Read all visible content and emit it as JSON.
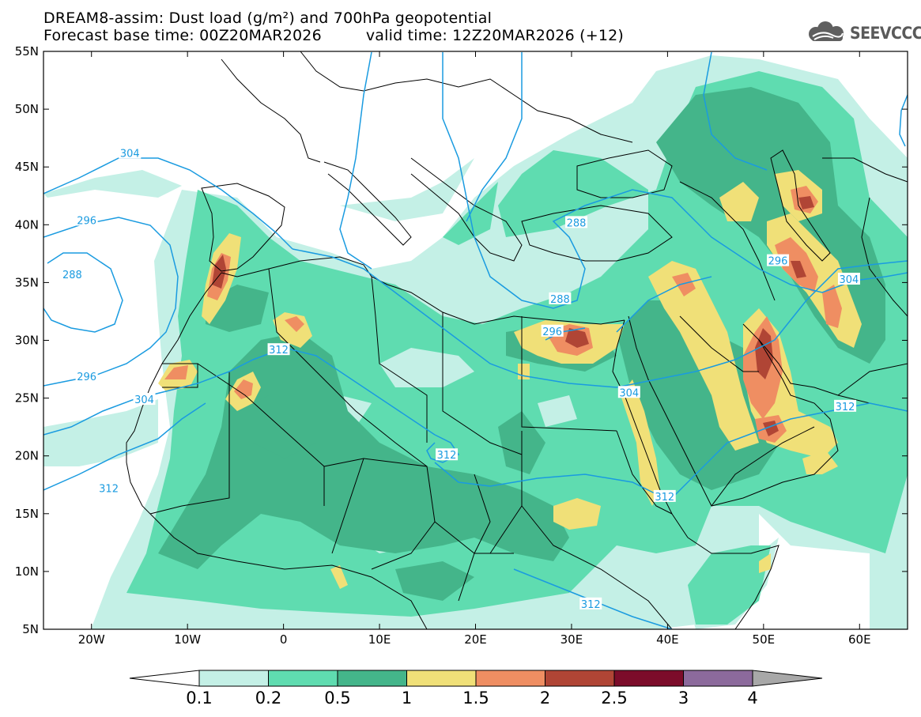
{
  "header": {
    "title_line1": "DREAM8-assim: Dust load (g/m²) and 700hPa geopotential",
    "forecast_base": "Forecast base time: 00Z20MAR2026",
    "valid_time": "valid time: 12Z20MAR2026 (+12)"
  },
  "logo": {
    "text": "SEEVCCC",
    "icon": "cloud-logo-icon"
  },
  "axes": {
    "lat_labels": [
      "55N",
      "50N",
      "45N",
      "40N",
      "35N",
      "30N",
      "25N",
      "20N",
      "15N",
      "10N",
      "5N"
    ],
    "lat_values": [
      55,
      50,
      45,
      40,
      35,
      30,
      25,
      20,
      15,
      10,
      5
    ],
    "lon_labels": [
      "20W",
      "10W",
      "0",
      "10E",
      "20E",
      "30E",
      "40E",
      "50E",
      "60E"
    ],
    "lon_values": [
      -20,
      -10,
      0,
      10,
      20,
      30,
      40,
      50,
      60
    ],
    "lon_range": [
      -25,
      65
    ],
    "lat_range": [
      5,
      55
    ]
  },
  "contour_labels": [
    {
      "text": "304",
      "lon": -16,
      "lat": 46.2
    },
    {
      "text": "296",
      "lon": -20.5,
      "lat": 40.4
    },
    {
      "text": "288",
      "lon": -22,
      "lat": 35.7
    },
    {
      "text": "296",
      "lon": -20.5,
      "lat": 26.9
    },
    {
      "text": "304",
      "lon": -14.5,
      "lat": 24.9
    },
    {
      "text": "312",
      "lon": -0.5,
      "lat": 29.2
    },
    {
      "text": "312",
      "lon": -18.2,
      "lat": 17.2
    },
    {
      "text": "312",
      "lon": 17,
      "lat": 20.1
    },
    {
      "text": "296",
      "lon": 28,
      "lat": 30.8
    },
    {
      "text": "288",
      "lon": 30.5,
      "lat": 40.2
    },
    {
      "text": "288",
      "lon": 28.8,
      "lat": 33.6
    },
    {
      "text": "304",
      "lon": 36,
      "lat": 25.5
    },
    {
      "text": "296",
      "lon": 51.5,
      "lat": 36.9
    },
    {
      "text": "304",
      "lon": 58.9,
      "lat": 35.3
    },
    {
      "text": "312",
      "lon": 58.5,
      "lat": 24.3
    },
    {
      "text": "312",
      "lon": 39.7,
      "lat": 16.5
    },
    {
      "text": "312",
      "lon": 32,
      "lat": 7.2
    }
  ],
  "colorbar": {
    "labels": [
      "0.1",
      "0.2",
      "0.5",
      "1",
      "1.5",
      "2",
      "2.5",
      "3",
      "4"
    ],
    "colors": [
      "#c4f0e6",
      "#5fdcb0",
      "#44b58a",
      "#f0e078",
      "#ef8e62",
      "#b04535",
      "#7c0c2a",
      "#8c6a9c"
    ],
    "under_color": "#ffffff",
    "over_color": "#a8a8a8"
  }
}
